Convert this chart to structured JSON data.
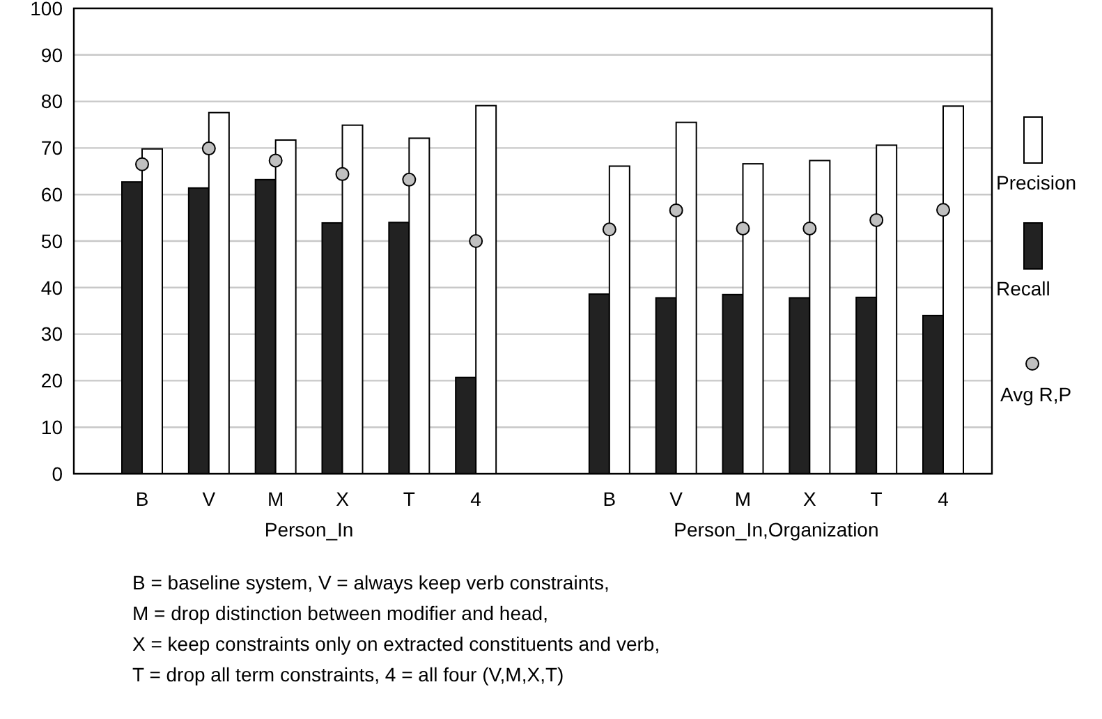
{
  "chart_data": {
    "type": "bar",
    "categories": [
      "B",
      "V",
      "M",
      "X",
      "T",
      "4",
      null,
      "B",
      "V",
      "M",
      "X",
      "T",
      "4"
    ],
    "series": [
      {
        "name": "Recall",
        "color": "#222222",
        "values": [
          62.7,
          61.4,
          63.2,
          53.9,
          54,
          20.7,
          null,
          38.6,
          37.8,
          38.5,
          37.8,
          37.9,
          34.0
        ]
      },
      {
        "name": "Precision",
        "color": "#ffffff",
        "values": [
          69.8,
          77.6,
          71.7,
          74.9,
          72.1,
          79.1,
          null,
          66.1,
          75.5,
          66.6,
          67.3,
          70.6,
          79.0
        ]
      },
      {
        "name": "Avg R,P",
        "type": "scatter",
        "color": "#c0c0c0",
        "values": [
          66.5,
          69.9,
          67.3,
          64.4,
          63.2,
          50,
          null,
          52.5,
          56.6,
          52.7,
          52.7,
          54.5,
          56.7
        ]
      }
    ],
    "ylim": [
      0,
      100
    ],
    "yticks": [
      0,
      10,
      20,
      30,
      40,
      50,
      60,
      70,
      80,
      90,
      100
    ],
    "grid": "y",
    "legend": "right",
    "marker": "circle",
    "annotations": [
      "Person_In",
      "Person_In,Organization",
      "B = baseline system, V = always keep verb constraints,",
      "M = drop distinction between modifier and head,",
      "X = keep constraints only on extracted constituents and verb,",
      "T = drop all term constraints, 4 = all four (V,M,X,T)"
    ]
  }
}
